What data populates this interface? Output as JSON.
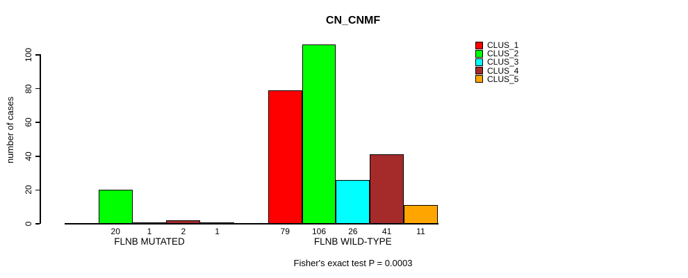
{
  "title": "CN_CNMF",
  "footer_note": "Fisher's exact test P = 0.0003",
  "chart_data": {
    "type": "bar",
    "title": "CN_CNMF",
    "xlabel": "",
    "ylabel": "number of cases",
    "ylim": [
      0,
      100
    ],
    "yticks": [
      0,
      20,
      40,
      60,
      80,
      100
    ],
    "grid": false,
    "legend_position": "top-right",
    "bar_value_labels_shown": true,
    "zero_bars_unlabeled": true,
    "categories": [
      "FLNB MUTATED",
      "FLNB WILD-TYPE"
    ],
    "series": [
      {
        "name": "CLUS_1",
        "color": "#FF0000",
        "values": [
          0,
          79
        ]
      },
      {
        "name": "CLUS_2",
        "color": "#00FF00",
        "values": [
          20,
          106
        ]
      },
      {
        "name": "CLUS_3",
        "color": "#00FFFF",
        "values": [
          1,
          26
        ]
      },
      {
        "name": "CLUS_4",
        "color": "#A52A2A",
        "values": [
          2,
          41
        ]
      },
      {
        "name": "CLUS_5",
        "color": "#FFA500",
        "values": [
          1,
          11
        ]
      }
    ],
    "annotation": "Fisher's exact test P = 0.0003"
  },
  "colors": {
    "axis": "#000000",
    "background": "#FFFFFF",
    "bar_border": "#000000"
  }
}
